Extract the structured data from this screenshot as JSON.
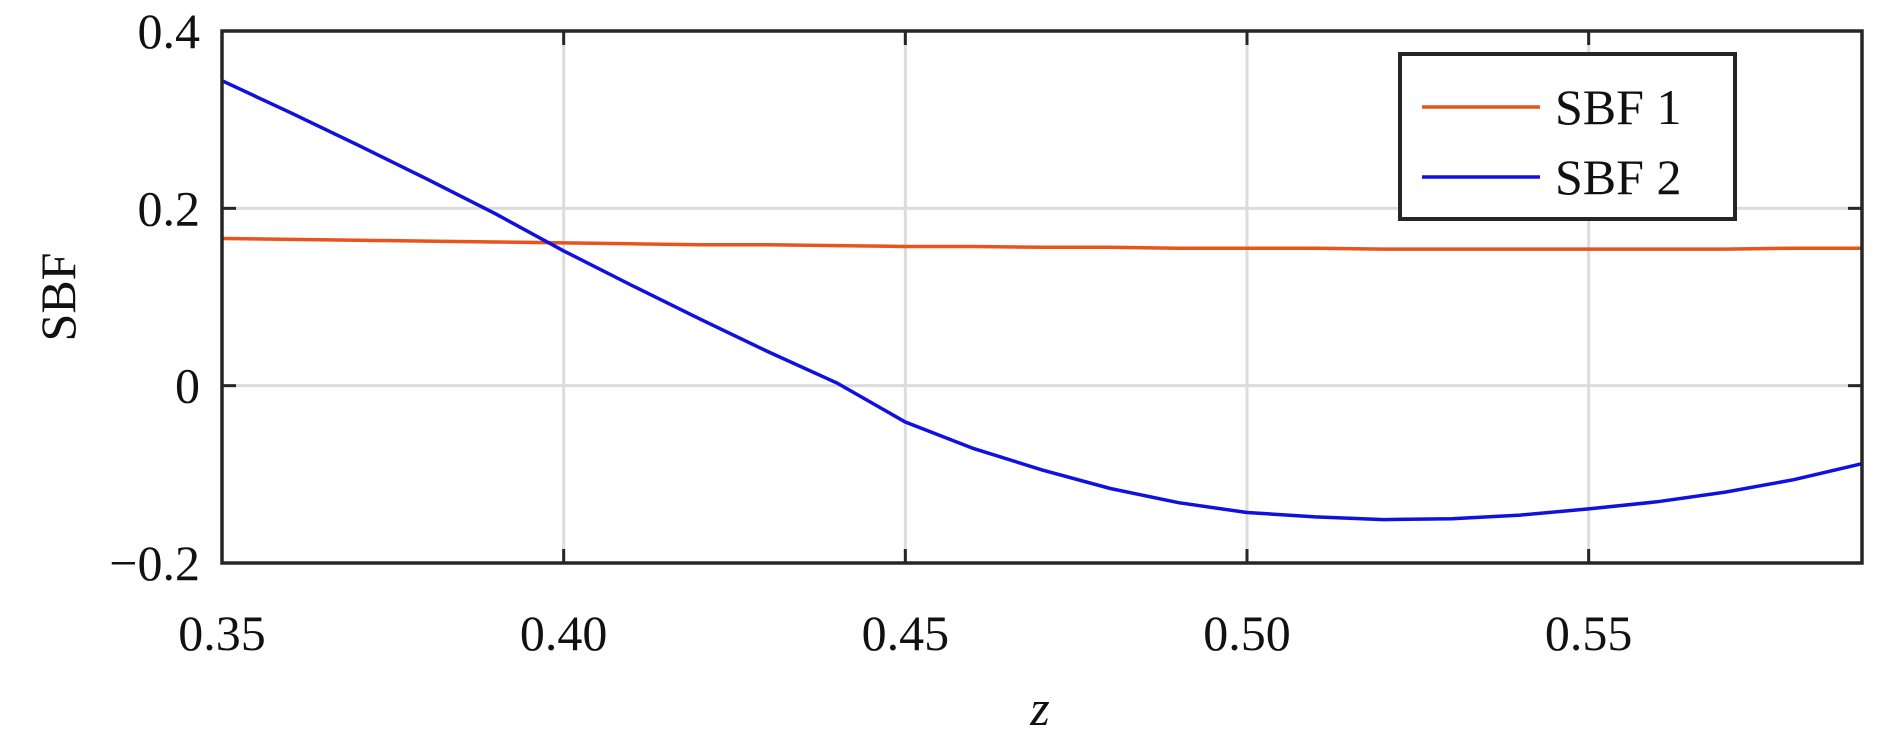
{
  "chart_data": {
    "type": "line",
    "xlabel": "z",
    "ylabel": "SBF",
    "x": [
      0.35,
      0.36,
      0.37,
      0.38,
      0.39,
      0.4,
      0.41,
      0.42,
      0.43,
      0.44,
      0.45,
      0.46,
      0.47,
      0.48,
      0.49,
      0.5,
      0.51,
      0.52,
      0.53,
      0.54,
      0.55,
      0.56,
      0.57,
      0.58,
      0.59
    ],
    "series": [
      {
        "name": "SBF 1",
        "color": "#e8541b",
        "values": [
          0.166,
          0.165,
          0.164,
          0.163,
          0.162,
          0.161,
          0.16,
          0.159,
          0.159,
          0.158,
          0.157,
          0.157,
          0.156,
          0.156,
          0.155,
          0.155,
          0.155,
          0.154,
          0.154,
          0.154,
          0.154,
          0.154,
          0.154,
          0.155,
          0.155
        ]
      },
      {
        "name": "SBF 2",
        "color": "#1010e0",
        "values": [
          0.344,
          0.308,
          0.271,
          0.233,
          0.194,
          0.152,
          0.113,
          0.075,
          0.038,
          0.003,
          -0.041,
          -0.071,
          -0.095,
          -0.116,
          -0.132,
          -0.143,
          -0.148,
          -0.151,
          -0.15,
          -0.146,
          -0.139,
          -0.131,
          -0.12,
          -0.106,
          -0.088
        ]
      }
    ],
    "xlim": [
      0.35,
      0.59
    ],
    "ylim": [
      -0.2,
      0.4
    ],
    "xticks": [
      0.35,
      {
        "value": 0.4,
        "label": "0.40"
      },
      0.45,
      {
        "value": 0.5,
        "label": "0.50"
      },
      0.55
    ],
    "yticks": [
      {
        "value": -0.2,
        "label": "−0.2"
      },
      0,
      0.2,
      0.4
    ],
    "grid": true,
    "legend": "upper right"
  }
}
